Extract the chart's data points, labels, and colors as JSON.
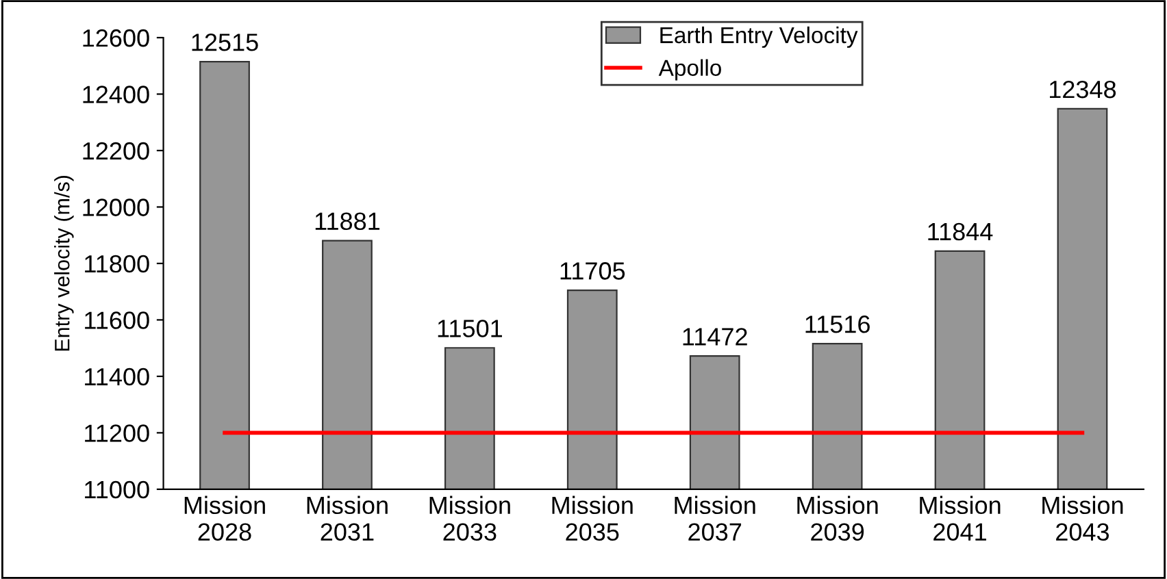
{
  "chart_data": {
    "type": "bar",
    "ylabel": "Entry velocity (m/s)",
    "categories": [
      "Mission\n2028",
      "Mission\n2031",
      "Mission\n2033",
      "Mission\n2035",
      "Mission\n2037",
      "Mission\n2039",
      "Mission\n2041",
      "Mission\n2043"
    ],
    "series": [
      {
        "name": "Earth Entry Velocity",
        "color": "#969696",
        "values": [
          12515,
          11881,
          11501,
          11705,
          11472,
          11516,
          11844,
          12348
        ],
        "value_labels": [
          "12515",
          "11881",
          "11501",
          "11705",
          "11472",
          "11516",
          "11844",
          "12348"
        ]
      },
      {
        "name": "Apollo",
        "type": "line",
        "color": "#ff0000",
        "values": [
          11200,
          11200,
          11200,
          11200,
          11200,
          11200,
          11200,
          11200
        ]
      }
    ],
    "ylim": [
      11000,
      12600
    ],
    "yticks": [
      11000,
      11200,
      11400,
      11600,
      11800,
      12000,
      12200,
      12400,
      12600
    ],
    "grid": false,
    "legend": "top",
    "marker": "none",
    "line_style": "solid"
  }
}
